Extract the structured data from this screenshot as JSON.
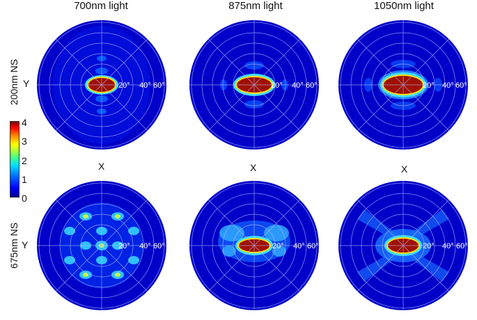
{
  "columns": [
    "700nm light",
    "875nm light",
    "1050nm light"
  ],
  "rows": [
    "200nm NS",
    "675nm NS"
  ],
  "axis": {
    "x": "X",
    "y": "Y"
  },
  "ring_labels": [
    "20°",
    "40°",
    "60°"
  ],
  "colorbar": {
    "ticks": [
      "4",
      "3",
      "2",
      "1",
      "0"
    ]
  },
  "colors": {
    "background": "#0000c8",
    "hot": "#a01000",
    "grid": "#b0b8ff"
  }
}
